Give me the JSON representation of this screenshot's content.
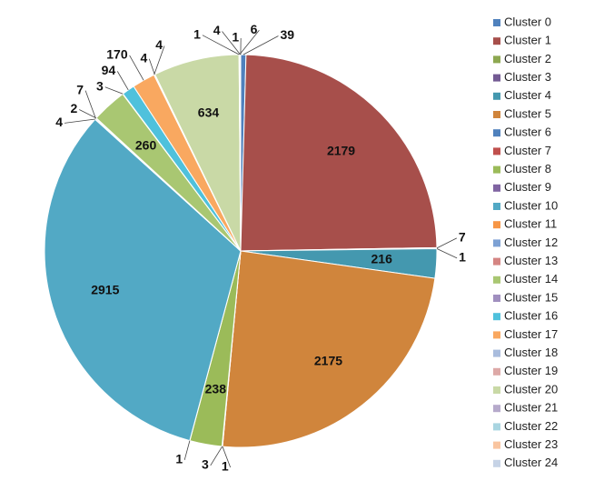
{
  "chart_data": {
    "type": "pie",
    "categories": [
      "Cluster 0",
      "Cluster 1",
      "Cluster 2",
      "Cluster 3",
      "Cluster 4",
      "Cluster 5",
      "Cluster 6",
      "Cluster 7",
      "Cluster 8",
      "Cluster 9",
      "Cluster 10",
      "Cluster 11",
      "Cluster 12",
      "Cluster 13",
      "Cluster 14",
      "Cluster 15",
      "Cluster 16",
      "Cluster 17",
      "Cluster 18",
      "Cluster 19",
      "Cluster 20",
      "Cluster 21",
      "Cluster 22",
      "Cluster 23",
      "Cluster 24"
    ],
    "values": [
      39,
      2179,
      7,
      1,
      216,
      2175,
      1,
      3,
      238,
      1,
      2915,
      4,
      7,
      2,
      260,
      3,
      94,
      170,
      4,
      4,
      634,
      1,
      6,
      4,
      1
    ],
    "colors": [
      "#4f81bd",
      "#a74f4b",
      "#8da850",
      "#735a93",
      "#4498af",
      "#d0853c",
      "#4f81bd",
      "#c0504d",
      "#9bbb59",
      "#8064a2",
      "#52a9c5",
      "#f79646",
      "#7da1d4",
      "#d58583",
      "#a9c772",
      "#a08fbf",
      "#4fc1dc",
      "#f9a860",
      "#a9bcdd",
      "#dda9a7",
      "#c9d9a6",
      "#b6aacb",
      "#a9d5e1",
      "#f9c5a0",
      "#c6d3e6"
    ],
    "legend": "right"
  }
}
